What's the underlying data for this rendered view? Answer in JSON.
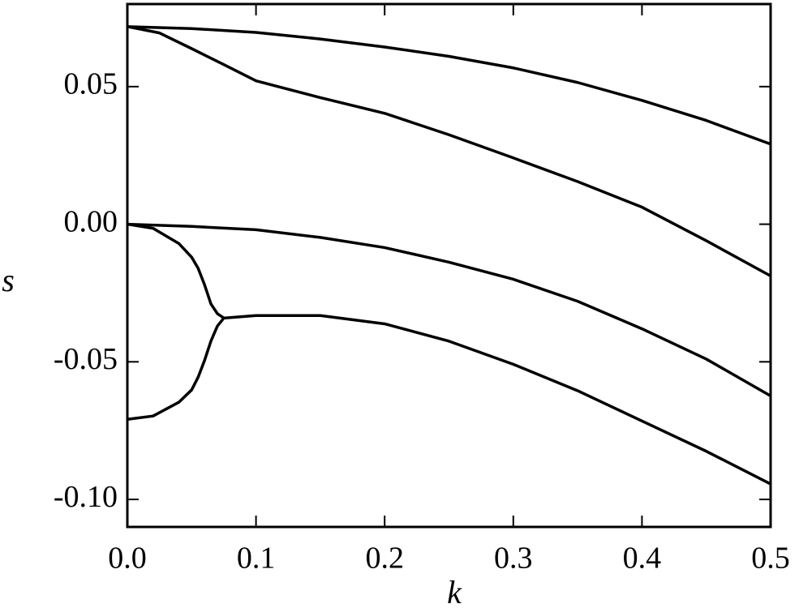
{
  "chart_data": {
    "type": "line",
    "x_label": "k",
    "y_label": "s",
    "xlim": [
      0,
      0.5
    ],
    "ylim": [
      -0.11,
      0.08
    ],
    "xticks": [
      {
        "value": 0,
        "label": "0.0"
      },
      0.1,
      0.2,
      0.3,
      0.4,
      0.5
    ],
    "yticks": [
      {
        "value": -0.1,
        "label": "-0.10"
      },
      -0.05,
      {
        "value": 0,
        "label": "0.00"
      },
      0.05
    ],
    "grid": false,
    "series": [
      {
        "color": "#000000",
        "x": [
          0,
          0.05,
          0.1,
          0.15,
          0.2,
          0.25,
          0.3,
          0.35,
          0.4,
          0.45,
          0.5
        ],
        "values": [
          0.0718,
          0.0711,
          0.0697,
          0.0673,
          0.0644,
          0.061,
          0.0568,
          0.0515,
          0.045,
          0.0377,
          0.0291
        ]
      },
      {
        "color": "#000000",
        "x": [
          0,
          0.025,
          0.05,
          0.075,
          0.1,
          0.15,
          0.2,
          0.25,
          0.3,
          0.35,
          0.4,
          0.45,
          0.5
        ],
        "values": [
          0.0718,
          0.0695,
          0.0638,
          0.058,
          0.0521,
          0.046,
          0.0403,
          0.0325,
          0.0241,
          0.0155,
          0.0062,
          -0.006,
          -0.0188
        ]
      },
      {
        "color": "#000000",
        "x": [
          0,
          0.05,
          0.1,
          0.15,
          0.2,
          0.25,
          0.3,
          0.35,
          0.4,
          0.45,
          0.5
        ],
        "values": [
          0,
          -0.0008,
          -0.002,
          -0.0048,
          -0.0085,
          -0.0138,
          -0.02,
          -0.028,
          -0.038,
          -0.049,
          -0.0624
        ]
      },
      {
        "color": "#000000",
        "x": [
          0,
          0.02,
          0.04,
          0.05,
          0.055,
          0.06,
          0.065,
          0.07,
          0.075,
          0.1,
          0.15,
          0.2,
          0.25,
          0.3,
          0.35,
          0.4,
          0.45,
          0.5
        ],
        "values": [
          -0.0709,
          -0.0697,
          -0.0647,
          -0.0602,
          -0.0556,
          -0.0495,
          -0.0424,
          -0.037,
          -0.0341,
          -0.0332,
          -0.0332,
          -0.0362,
          -0.0425,
          -0.0509,
          -0.0605,
          -0.0715,
          -0.0825,
          -0.0944
        ]
      },
      {
        "color": "#000000",
        "x": [
          0,
          0.02,
          0.04,
          0.05,
          0.055,
          0.06,
          0.065,
          0.07,
          0.075
        ],
        "values": [
          0,
          -0.0015,
          -0.007,
          -0.012,
          -0.016,
          -0.022,
          -0.029,
          -0.0325,
          -0.0341
        ]
      }
    ]
  }
}
